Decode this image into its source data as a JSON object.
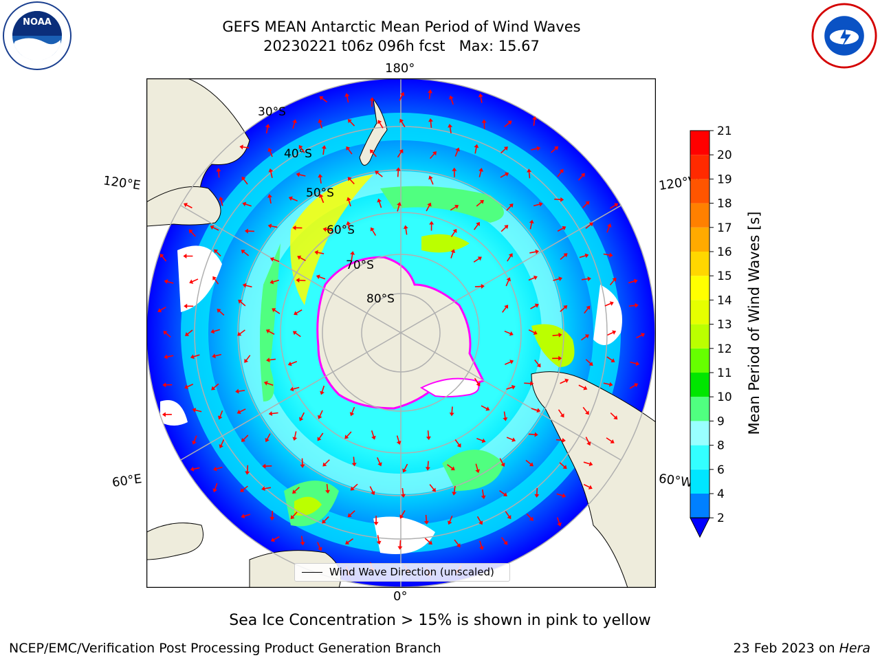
{
  "header": {
    "title_line1": "GEFS MEAN Antarctic Mean Period of Wind Waves",
    "title_line2": "20230221 t06z 096h fcst   Max: 15.67",
    "left_logo": "noaa-logo",
    "right_logo": "nws-logo"
  },
  "map": {
    "projection": "south-polar-stereographic",
    "longitude_labels": {
      "top": "180°",
      "bottom": "0°",
      "upper_left": "120°E",
      "lower_left": "60°E",
      "upper_right": "120°W",
      "lower_right": "60°W"
    },
    "latitude_labels": [
      "30°S",
      "40°S",
      "50°S",
      "60°S",
      "70°S",
      "80°S"
    ],
    "land_color": "#eeecdc",
    "arrow_color": "#ff0000",
    "legend_text": "Wind Wave Direction (unscaled)"
  },
  "colorbar": {
    "label": "Mean Period of Wind Waves [s]",
    "ticks": [
      "2",
      "4",
      "6",
      "8",
      "9",
      "10",
      "11",
      "12",
      "13",
      "14",
      "15",
      "16",
      "17",
      "18",
      "19",
      "20",
      "21"
    ],
    "colors": [
      "#0000ff",
      "#0080ff",
      "#00e6ff",
      "#33ffff",
      "#99ffff",
      "#50ff80",
      "#00e600",
      "#66ff00",
      "#bbff00",
      "#e6ff00",
      "#ffff00",
      "#ffd700",
      "#ffaa00",
      "#ff8000",
      "#ff5500",
      "#ff2a00",
      "#ff0000"
    ]
  },
  "notes": {
    "sea_ice": "Sea Ice Concentration > 15% is shown in pink to yellow"
  },
  "footer": {
    "left": "NCEP/EMC/Verification Post Processing Product Generation Branch",
    "right_date": "23 Feb 2023 on",
    "right_host": "Hera"
  }
}
